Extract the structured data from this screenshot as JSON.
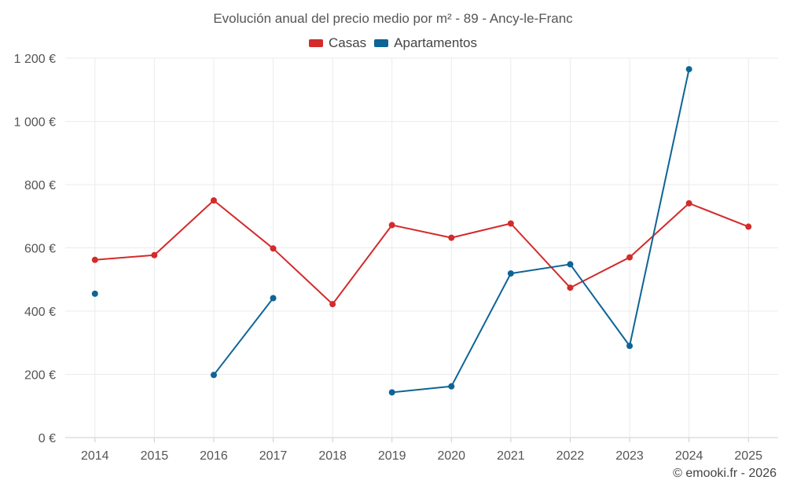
{
  "chart_data": {
    "type": "line",
    "title": "Evolución anual del precio medio por m² - 89 - Ancy-le-Franc",
    "categories": [
      "2014",
      "2015",
      "2016",
      "2017",
      "2018",
      "2019",
      "2020",
      "2021",
      "2022",
      "2023",
      "2024",
      "2025"
    ],
    "series": [
      {
        "name": "Casas",
        "color": "#d32b2b",
        "values": [
          562,
          577,
          750,
          598,
          422,
          672,
          632,
          677,
          474,
          570,
          741,
          667
        ]
      },
      {
        "name": "Apartamentos",
        "color": "#0e6496",
        "values": [
          455,
          null,
          198,
          441,
          null,
          143,
          162,
          519,
          548,
          290,
          1165,
          null
        ]
      }
    ],
    "ylim": [
      0,
      1200
    ],
    "yticks": [
      0,
      200,
      400,
      600,
      800,
      1000,
      1200
    ],
    "ytick_labels": [
      "0 €",
      "200 €",
      "400 €",
      "600 €",
      "800 €",
      "1 000 €",
      "1 200 €"
    ],
    "grid": true,
    "legend": "top-center"
  },
  "credit": "© emooki.fr - 2026"
}
